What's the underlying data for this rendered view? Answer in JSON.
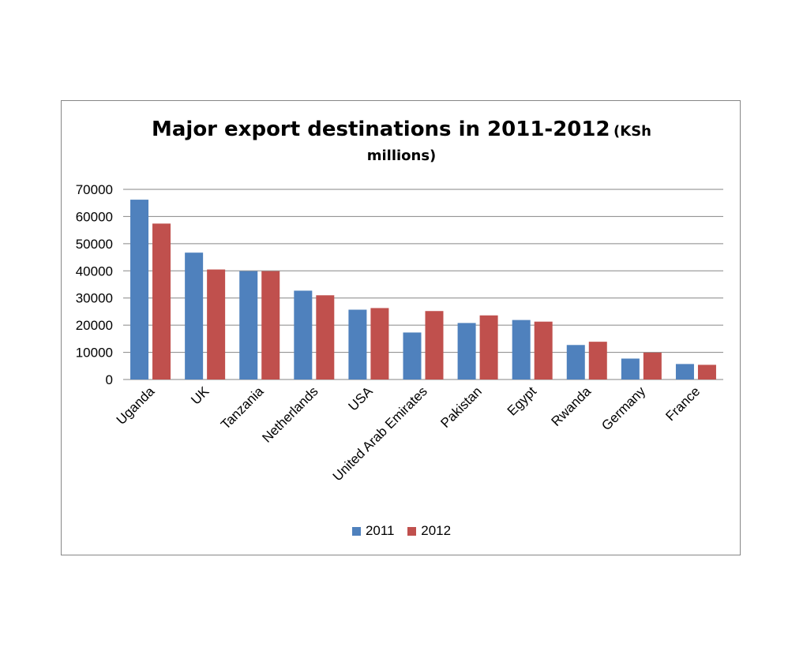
{
  "chart_data": {
    "type": "bar",
    "title": "Major export destinations in 2011-2012",
    "title_suffix_line1": "(KSh",
    "title_suffix_line2": "millions)",
    "categories": [
      "Uganda",
      "UK",
      "Tanzania",
      "Netherlands",
      "USA",
      "United Arab Emirates",
      "Pakistan",
      "Egypt",
      "Rwanda",
      "Germany",
      "France"
    ],
    "series": [
      {
        "name": "2011",
        "color": "#4F81BD",
        "values": [
          66200,
          46700,
          39900,
          32700,
          25700,
          17300,
          20800,
          21900,
          12700,
          7700,
          5700
        ]
      },
      {
        "name": "2012",
        "color": "#C0504D",
        "values": [
          57400,
          40500,
          39900,
          31000,
          26300,
          25200,
          23600,
          21300,
          13900,
          9900,
          5400
        ]
      }
    ],
    "yticks": [
      "0",
      "10000",
      "20000",
      "30000",
      "40000",
      "50000",
      "60000",
      "70000"
    ],
    "ylim": [
      0,
      70000
    ],
    "grid": true,
    "legend": "bottom"
  }
}
